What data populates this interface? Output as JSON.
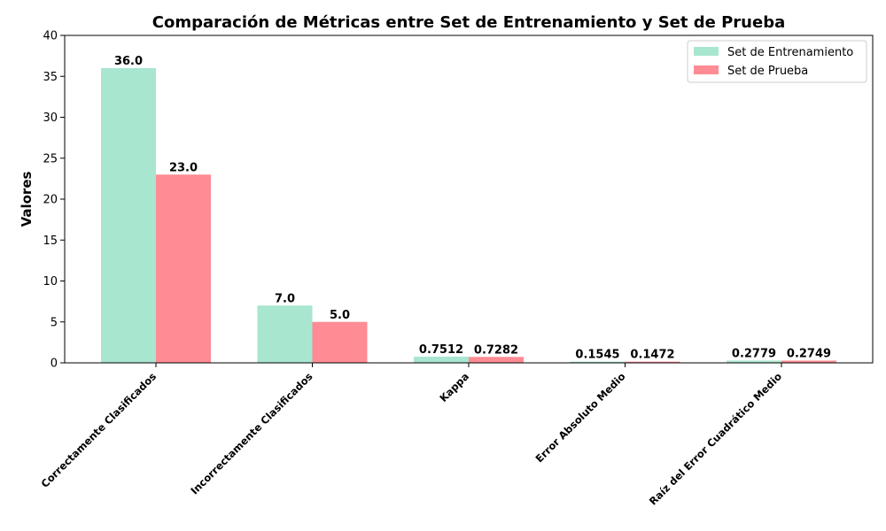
{
  "chart_data": {
    "type": "bar",
    "title": "Comparación de Métricas entre Set de Entrenamiento y Set de Prueba",
    "xlabel": "",
    "ylabel": "Valores",
    "ylim": [
      0,
      40
    ],
    "yticks": [
      0,
      5,
      10,
      15,
      20,
      25,
      30,
      35,
      40
    ],
    "grid": false,
    "legend_position": "top-right",
    "categories": [
      "Correctamente Clasificados",
      "Incorrectamente Clasificados",
      "Kappa",
      "Error Absoluto Medio",
      "Raíz del Error Cuadrático Medio"
    ],
    "series": [
      {
        "name": "Set de Entrenamiento",
        "color": "#a8e6cf",
        "values": [
          36.0,
          7.0,
          0.7512,
          0.1545,
          0.2779
        ],
        "labels": [
          "36.0",
          "7.0",
          "0.7512",
          "0.1545",
          "0.2779"
        ]
      },
      {
        "name": "Set de Prueba",
        "color": "#ff8b94",
        "values": [
          23.0,
          5.0,
          0.7282,
          0.1472,
          0.2749
        ],
        "labels": [
          "23.0",
          "5.0",
          "0.7282",
          "0.1472",
          "0.2749"
        ]
      }
    ]
  }
}
